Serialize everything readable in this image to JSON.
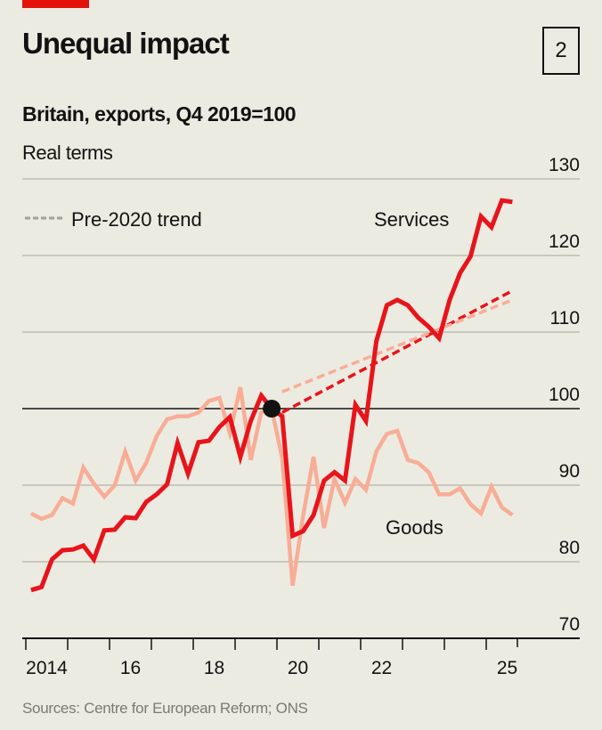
{
  "header": {
    "title": "Unequal impact",
    "badge": "2",
    "subtitle": "Britain, exports, Q4 2019=100",
    "subtitle2": "Real terms"
  },
  "footer": {
    "source": "Sources: Centre for European Reform; ONS"
  },
  "colors": {
    "accent": "#e3120b",
    "services": "#e8141b",
    "goods": "#f8ad96",
    "trend_legend": "#a0a09a",
    "background": "#ecebe1"
  },
  "chart_data": {
    "type": "line",
    "title": "Unequal impact",
    "subtitle": "Britain, exports, Q4 2019=100",
    "ylabel": "Real terms",
    "ylim": [
      70,
      130
    ],
    "yticks": [
      70,
      80,
      90,
      100,
      110,
      120,
      130
    ],
    "xlim": [
      "2014 Q1",
      "2025 Q4"
    ],
    "xtick_labels": [
      {
        "year": 2014,
        "label": "2014"
      },
      {
        "year": 2016,
        "label": "16"
      },
      {
        "year": 2018,
        "label": "18"
      },
      {
        "year": 2020,
        "label": "20"
      },
      {
        "year": 2022,
        "label": "22"
      },
      {
        "year": 2025,
        "label": "25"
      }
    ],
    "frequency": "quarterly",
    "start": "2014 Q1",
    "reference_point": {
      "period": "2019 Q4",
      "value": 100
    },
    "grid": true,
    "legend": {
      "label": "Pre-2020 trend",
      "placement": "top-left"
    },
    "series": [
      {
        "name": "Services",
        "values": [
          76.3,
          76.7,
          80.3,
          81.5,
          81.6,
          82.1,
          80.3,
          84.1,
          84.2,
          85.8,
          85.7,
          87.8,
          88.8,
          90.1,
          95.5,
          91.5,
          95.6,
          95.8,
          97.6,
          98.9,
          93.7,
          98.4,
          101.7,
          100,
          99.0,
          83.4,
          84.0,
          86.1,
          90.6,
          91.7,
          90.6,
          100.5,
          98.4,
          108.8,
          113.5,
          114.2,
          113.5,
          111.9,
          110.7,
          109.2,
          114.2,
          117.7,
          119.9,
          125.1,
          123.7,
          127.2,
          127.0
        ]
      },
      {
        "name": "Goods",
        "values": [
          86.3,
          85.6,
          86.1,
          88.3,
          87.6,
          92.3,
          90.2,
          88.5,
          90.0,
          94.4,
          90.6,
          92.9,
          96.4,
          98.6,
          99.0,
          99.0,
          99.5,
          101.0,
          101.4,
          96.8,
          102.8,
          93.3,
          99.5,
          100,
          93.5,
          76.9,
          86.0,
          93.7,
          84.4,
          90.8,
          87.7,
          90.8,
          89.4,
          94.4,
          96.7,
          97.1,
          93.3,
          92.9,
          91.7,
          88.8,
          88.8,
          89.6,
          87.5,
          86.3,
          89.8,
          87.1,
          86.1
        ]
      }
    ],
    "trends": [
      {
        "of": "Services",
        "from": {
          "period": "2020 Q1",
          "value": 99.5
        },
        "to": {
          "period": "2025 Q3",
          "value": 115.4
        }
      },
      {
        "of": "Goods",
        "from": {
          "period": "2020 Q1",
          "value": 102.2
        },
        "to": {
          "period": "2025 Q3",
          "value": 114.2
        }
      }
    ]
  }
}
